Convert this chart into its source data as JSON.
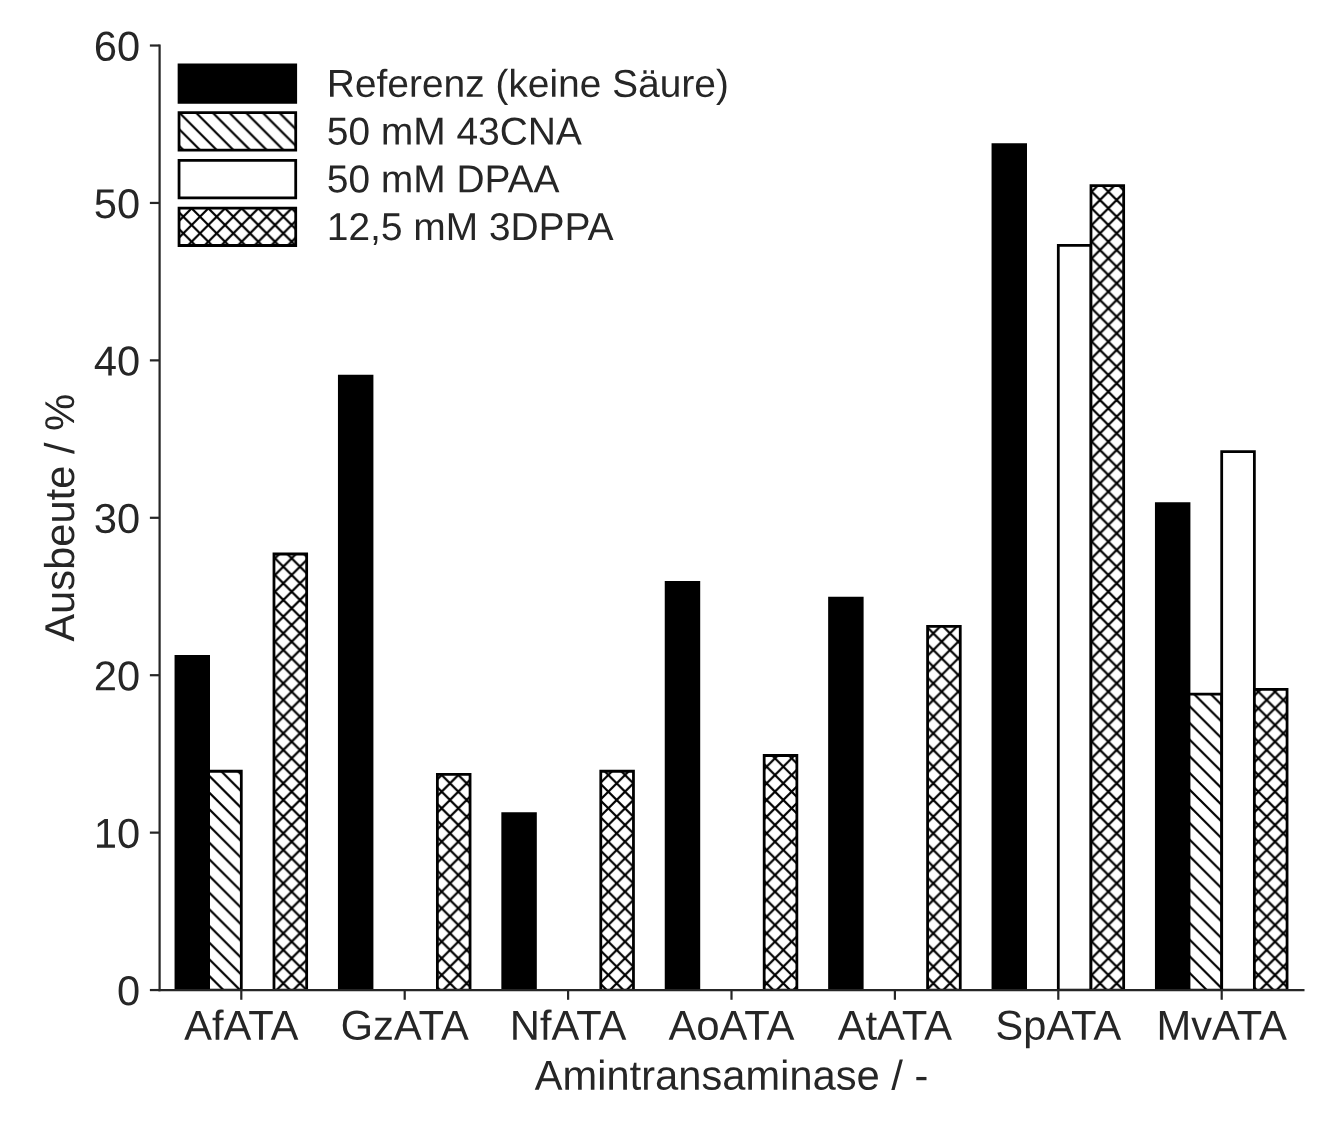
{
  "chart_data": {
    "type": "bar",
    "xlabel": "Amintransaminase / -",
    "ylabel": "Ausbeute / %",
    "categories": [
      "AfATA",
      "GzATA",
      "NfATA",
      "AoATA",
      "AtATA",
      "SpATA",
      "MvATA"
    ],
    "series": [
      {
        "name": "Referenz (keine Säure)",
        "color": "#000000",
        "values": [
          21.2,
          39.0,
          11.2,
          25.9,
          24.9,
          53.7,
          30.9
        ]
      },
      {
        "name": "50 mM 43CNA",
        "color": "#000000",
        "values": [
          13.9,
          null,
          null,
          null,
          null,
          null,
          18.8
        ]
      },
      {
        "name": "50 mM DPAA",
        "color": "#ffffff",
        "values": [
          null,
          null,
          null,
          null,
          null,
          47.3,
          34.2
        ]
      },
      {
        "name": "12,5 mM 3DPPA",
        "color": "#000000",
        "values": [
          27.7,
          13.7,
          13.9,
          14.9,
          23.1,
          51.1,
          19.1
        ]
      }
    ],
    "ylim": [
      0,
      60
    ],
    "yticks": [
      0,
      10,
      20,
      30,
      40,
      50,
      60
    ],
    "grid": false,
    "legend": "top left"
  }
}
